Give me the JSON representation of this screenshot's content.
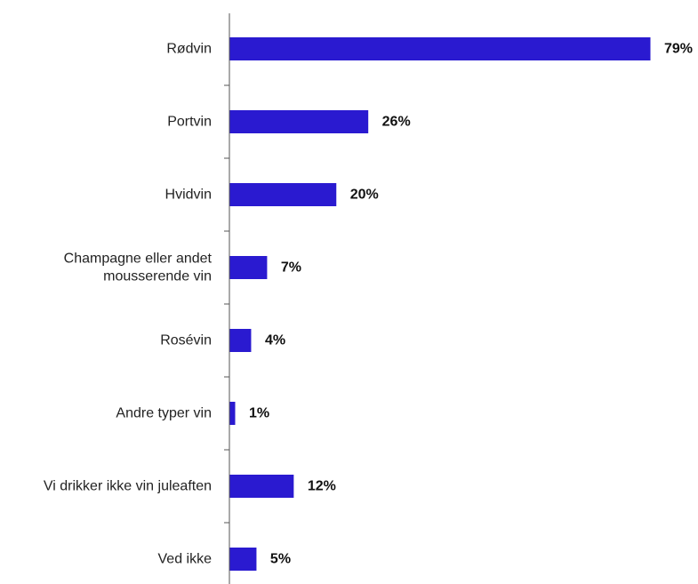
{
  "chart_data": {
    "type": "bar",
    "orientation": "horizontal",
    "categories": [
      "Rødvin",
      "Portvin",
      "Hvidvin",
      "Champagne eller andet mousserende vin",
      "Rosévin",
      "Andre typer vin",
      "Vi drikker ikke vin juleaften",
      "Ved ikke"
    ],
    "category_lines": [
      [
        "Rødvin"
      ],
      [
        "Portvin"
      ],
      [
        "Hvidvin"
      ],
      [
        "Champagne eller andet",
        "mousserende vin"
      ],
      [
        "Rosévin"
      ],
      [
        "Andre typer vin"
      ],
      [
        "Vi drikker ikke vin juleaften"
      ],
      [
        "Ved ikke"
      ]
    ],
    "values": [
      79,
      26,
      20,
      7,
      4,
      1,
      12,
      5
    ],
    "value_labels": [
      "79%",
      "26%",
      "20%",
      "7%",
      "4%",
      "1%",
      "12%",
      "5%"
    ],
    "unit": "%",
    "xlim": [
      0,
      100
    ],
    "grid": false,
    "colors": {
      "bar": "#2a1ad0",
      "axis": "#555555"
    }
  }
}
